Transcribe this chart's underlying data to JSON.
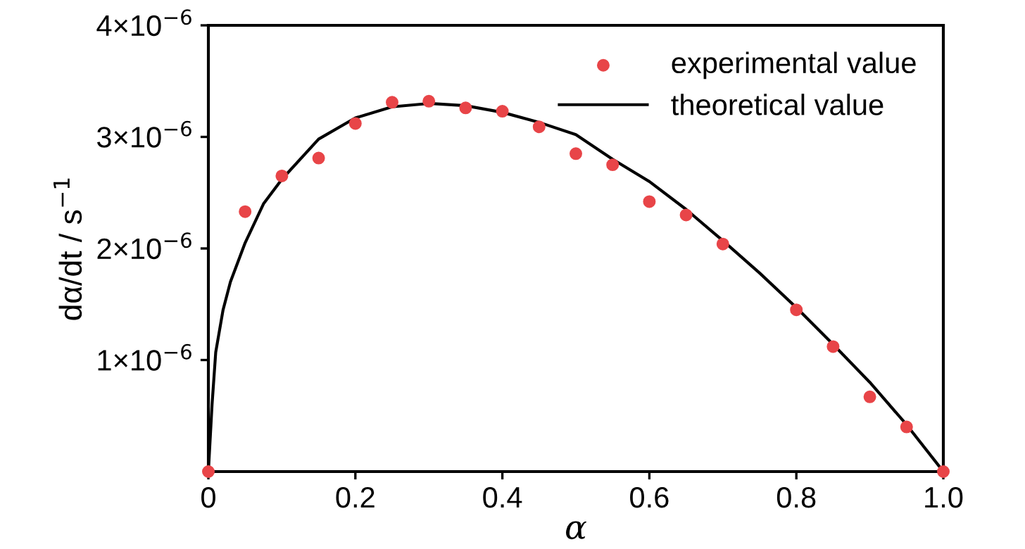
{
  "chart_data": {
    "type": "line",
    "xlabel": "α",
    "ylabel": "dα/dt / s$^{−1}$",
    "xlim": [
      0,
      1.0
    ],
    "xticks": [
      0,
      0.2,
      0.4,
      0.6,
      0.8,
      {
        "value": 1.0,
        "label": "1.0"
      }
    ],
    "ylim": [
      0,
      4e-06
    ],
    "yticks": [
      {
        "value": 1e-06,
        "label": "1×10$^{−6}$"
      },
      {
        "value": 2e-06,
        "label": "2×10$^{−6}$"
      },
      {
        "value": 3e-06,
        "label": "3×10$^{−6}$"
      },
      {
        "value": 4e-06,
        "label": "4×10$^{−6}$"
      }
    ],
    "grid": false,
    "legend": "top right",
    "series": [
      {
        "name": "experimental value",
        "type": "scatter",
        "marker": "circle",
        "color": "#e84548",
        "x": [
          0,
          0.05,
          0.1,
          0.15,
          0.2,
          0.25,
          0.3,
          0.35,
          0.4,
          0.45,
          0.5,
          0.55,
          0.6,
          0.65,
          0.7,
          0.8,
          0.85,
          0.9,
          0.95,
          1.0
        ],
        "values": [
          0,
          2.33e-06,
          2.65e-06,
          2.81e-06,
          3.12e-06,
          3.31e-06,
          3.32e-06,
          3.26e-06,
          3.23e-06,
          3.09e-06,
          2.85e-06,
          2.75e-06,
          2.42e-06,
          2.3e-06,
          2.04e-06,
          1.45e-06,
          1.12e-06,
          6.7e-07,
          4e-07,
          0
        ]
      },
      {
        "name": "theoretical value",
        "marker": "none",
        "line_style": "solid",
        "color": "#000000",
        "x": [
          0,
          0.005,
          0.01,
          0.02,
          0.03,
          0.05,
          0.075,
          0.1,
          0.15,
          0.2,
          0.25,
          0.3,
          0.35,
          0.4,
          0.45,
          0.5,
          0.55,
          0.6,
          0.65,
          0.7,
          0.75,
          0.8,
          0.85,
          0.9,
          0.95,
          1.0
        ],
        "values": [
          0,
          6e-07,
          1.07e-06,
          1.45e-06,
          1.7e-06,
          2.05e-06,
          2.4e-06,
          2.62e-06,
          2.98e-06,
          3.17e-06,
          3.27e-06,
          3.3e-06,
          3.28e-06,
          3.22e-06,
          3.13e-06,
          3.02e-06,
          2.8e-06,
          2.6e-06,
          2.35e-06,
          2.07e-06,
          1.78e-06,
          1.47e-06,
          1.14e-06,
          8e-07,
          4.2e-07,
          0
        ]
      }
    ]
  }
}
